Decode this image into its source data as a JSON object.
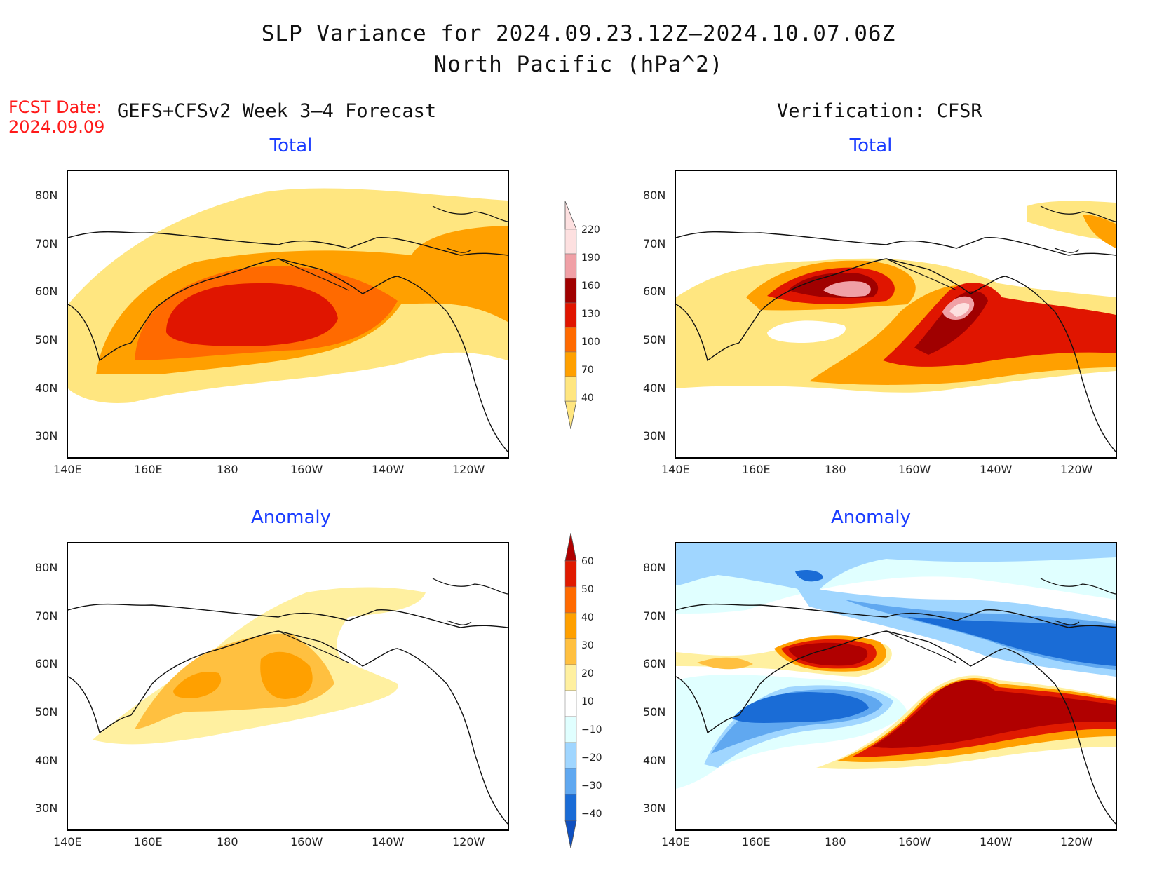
{
  "header": {
    "title_line1": "SLP Variance for 2024.09.23.12Z–2024.10.07.06Z",
    "title_line2": "North Pacific (hPa^2)"
  },
  "fcst": {
    "label": "FCST Date:",
    "date": "2024.09.09"
  },
  "columns": {
    "left_title": "GEFS+CFSv2 Week 3–4 Forecast",
    "right_title": "Verification: CFSR"
  },
  "panels": {
    "top_left": "Total",
    "top_right": "Total",
    "bottom_left": "Anomaly",
    "bottom_right": "Anomaly"
  },
  "axes": {
    "lat_labels": [
      "80N",
      "70N",
      "60N",
      "50N",
      "40N",
      "30N"
    ],
    "lon_labels": [
      "140E",
      "160E",
      "180",
      "160W",
      "140W",
      "120W"
    ]
  },
  "colorbar_total": {
    "levels": [
      "220",
      "190",
      "160",
      "130",
      "100",
      "70",
      "40"
    ],
    "colors": [
      "#fde0e0",
      "#f0a0a6",
      "#a00000",
      "#e01500",
      "#ff6a00",
      "#ffa000",
      "#ffe680"
    ]
  },
  "colorbar_anomaly": {
    "levels": [
      "60",
      "50",
      "40",
      "30",
      "20",
      "10",
      "−10",
      "−20",
      "−30",
      "−40"
    ],
    "colors": [
      "#b00000",
      "#e01a00",
      "#ff6a00",
      "#ffa000",
      "#ffc040",
      "#fff0a0",
      "#ffffff",
      "#e0ffff",
      "#a0d6ff",
      "#60a8f0",
      "#1a6cd6",
      "#1050c0"
    ]
  }
}
